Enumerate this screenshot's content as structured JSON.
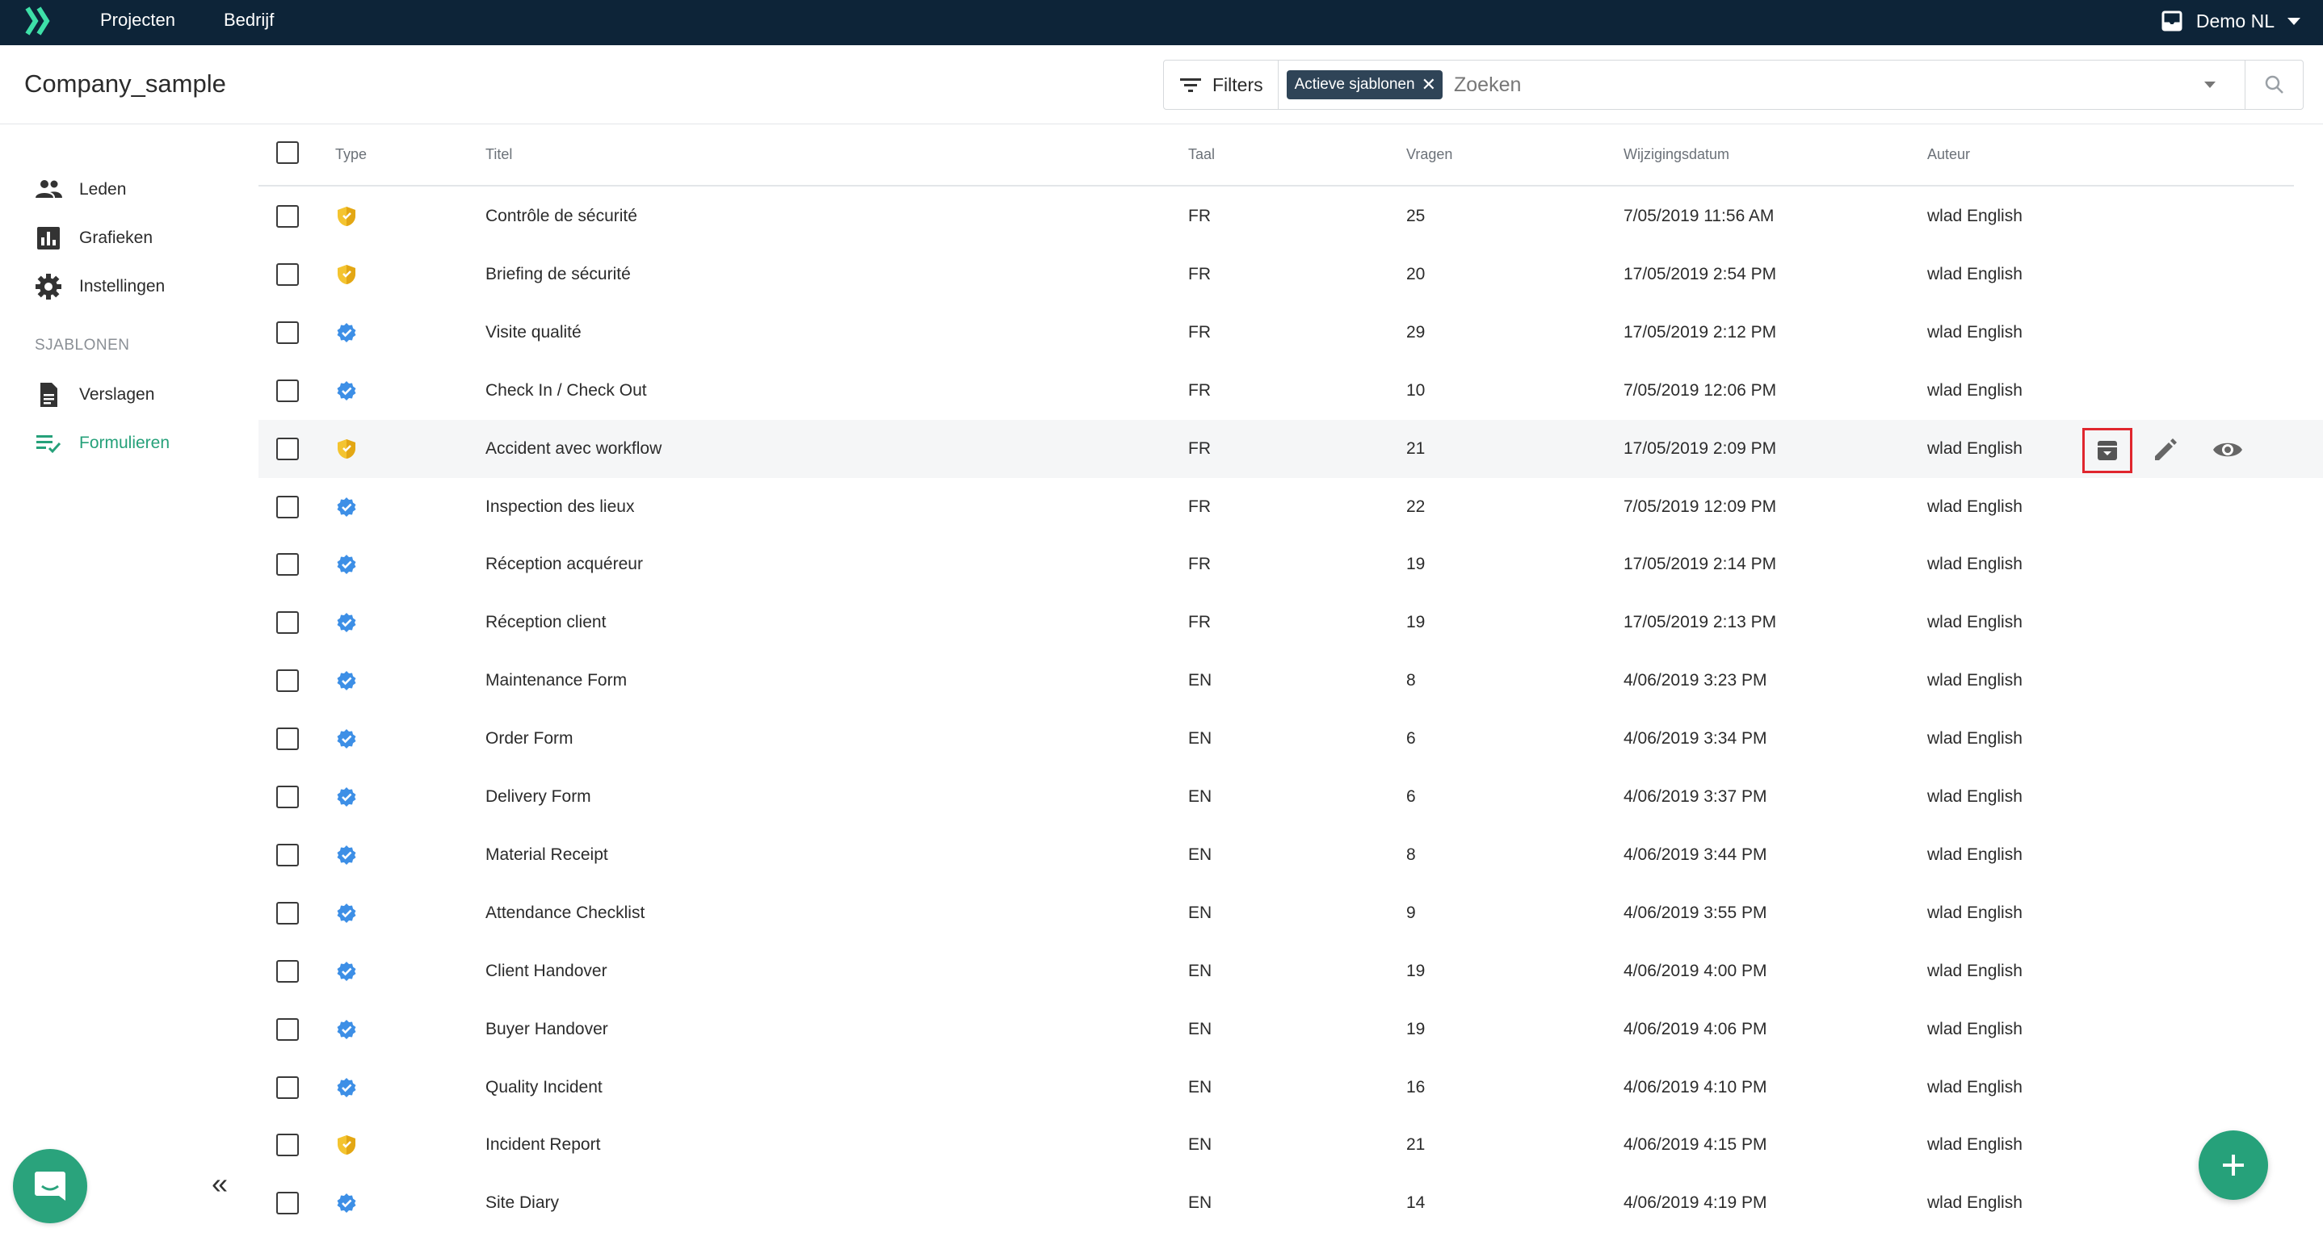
{
  "topbar": {
    "logo_icon": "chevrons-logo-icon",
    "nav": [
      {
        "label": "Projecten"
      },
      {
        "label": "Bedrijf"
      }
    ],
    "account_icon": "inbox-icon",
    "account_label": "Demo NL"
  },
  "header": {
    "title": "Company_sample",
    "filters_label": "Filters",
    "chip_label": "Actieve sjablonen",
    "search_placeholder": "Zoeken"
  },
  "sidebar": {
    "items": [
      {
        "label": "Leden",
        "icon": "people-icon"
      },
      {
        "label": "Grafieken",
        "icon": "bar-chart-icon"
      },
      {
        "label": "Instellingen",
        "icon": "gear-icon"
      }
    ],
    "section_label": "SJABLONEN",
    "templates": [
      {
        "label": "Verslagen",
        "icon": "document-icon"
      },
      {
        "label": "Formulieren",
        "icon": "checklist-icon",
        "active": true
      }
    ]
  },
  "colors": {
    "topbar": "#0d2438",
    "accent": "#26a17a",
    "shield_yellow": "#f4c430",
    "verified_blue": "#3d8fe6",
    "highlight_red": "#e0262e"
  },
  "table": {
    "columns": {
      "type": "Type",
      "title": "Titel",
      "language": "Taal",
      "questions": "Vragen",
      "modified": "Wijzigingsdatum",
      "author": "Auteur"
    },
    "rows": [
      {
        "type": "shield",
        "title": "Contrôle de sécurité",
        "lang": "FR",
        "questions": "25",
        "date": "7/05/2019 11:56 AM",
        "author": "wlad English"
      },
      {
        "type": "shield",
        "title": "Briefing de sécurité",
        "lang": "FR",
        "questions": "20",
        "date": "17/05/2019 2:54 PM",
        "author": "wlad English"
      },
      {
        "type": "verified",
        "title": "Visite qualité",
        "lang": "FR",
        "questions": "29",
        "date": "17/05/2019 2:12 PM",
        "author": "wlad English"
      },
      {
        "type": "verified",
        "title": "Check In / Check Out",
        "lang": "FR",
        "questions": "10",
        "date": "7/05/2019 12:06 PM",
        "author": "wlad English"
      },
      {
        "type": "shield",
        "title": "Accident avec workflow",
        "lang": "FR",
        "questions": "21",
        "date": "17/05/2019 2:09 PM",
        "author": "wlad English",
        "hover": true
      },
      {
        "type": "verified",
        "title": "Inspection des lieux",
        "lang": "FR",
        "questions": "22",
        "date": "7/05/2019 12:09 PM",
        "author": "wlad English"
      },
      {
        "type": "verified",
        "title": "Réception acquéreur",
        "lang": "FR",
        "questions": "19",
        "date": "17/05/2019 2:14 PM",
        "author": "wlad English"
      },
      {
        "type": "verified",
        "title": "Réception client",
        "lang": "FR",
        "questions": "19",
        "date": "17/05/2019 2:13 PM",
        "author": "wlad English"
      },
      {
        "type": "verified",
        "title": "Maintenance Form",
        "lang": "EN",
        "questions": "8",
        "date": "4/06/2019 3:23 PM",
        "author": "wlad English"
      },
      {
        "type": "verified",
        "title": "Order Form",
        "lang": "EN",
        "questions": "6",
        "date": "4/06/2019 3:34 PM",
        "author": "wlad English"
      },
      {
        "type": "verified",
        "title": "Delivery Form",
        "lang": "EN",
        "questions": "6",
        "date": "4/06/2019 3:37 PM",
        "author": "wlad English"
      },
      {
        "type": "verified",
        "title": "Material Receipt",
        "lang": "EN",
        "questions": "8",
        "date": "4/06/2019 3:44 PM",
        "author": "wlad English"
      },
      {
        "type": "verified",
        "title": "Attendance Checklist",
        "lang": "EN",
        "questions": "9",
        "date": "4/06/2019 3:55 PM",
        "author": "wlad English"
      },
      {
        "type": "verified",
        "title": "Client Handover",
        "lang": "EN",
        "questions": "19",
        "date": "4/06/2019 4:00 PM",
        "author": "wlad English"
      },
      {
        "type": "verified",
        "title": "Buyer Handover",
        "lang": "EN",
        "questions": "19",
        "date": "4/06/2019 4:06 PM",
        "author": "wlad English"
      },
      {
        "type": "verified",
        "title": "Quality Incident",
        "lang": "EN",
        "questions": "16",
        "date": "4/06/2019 4:10 PM",
        "author": "wlad English"
      },
      {
        "type": "shield",
        "title": "Incident Report",
        "lang": "EN",
        "questions": "21",
        "date": "4/06/2019 4:15 PM",
        "author": "wlad English"
      },
      {
        "type": "verified",
        "title": "Site Diary",
        "lang": "EN",
        "questions": "14",
        "date": "4/06/2019 4:19 PM",
        "author": "wlad English"
      }
    ],
    "row_actions": [
      "archive-icon",
      "pencil-icon",
      "eye-icon"
    ]
  },
  "fab_icon": "plus-icon",
  "chat_icon": "chat-icon",
  "collapse_icon": "double-chevron-left-icon"
}
